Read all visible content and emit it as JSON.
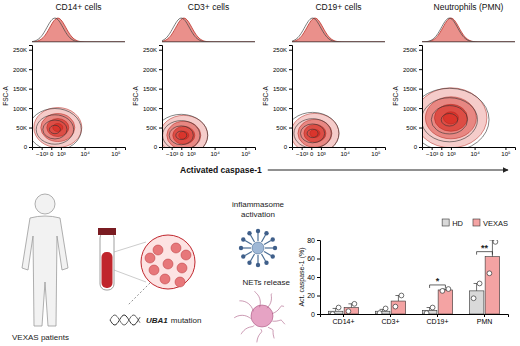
{
  "flow": {
    "x_label": "Activated caspase-1",
    "y_label": "FSC-A",
    "xlim": [
      -3000,
      200000
    ],
    "xticks": [
      {
        "value": -1000,
        "label": "−10³"
      },
      0,
      {
        "value": 1000,
        "label": "10³"
      },
      {
        "value": 10000,
        "label": "10⁴"
      },
      {
        "value": 100000,
        "label": "10⁵"
      }
    ],
    "ylim": [
      0,
      262144
    ],
    "yticks": [
      0,
      {
        "value": 50000,
        "label": "50K"
      },
      {
        "value": 100000,
        "label": "100K"
      },
      {
        "value": 150000,
        "label": "150K"
      },
      {
        "value": 200000,
        "label": "200K"
      },
      {
        "value": 250000,
        "label": "250K"
      }
    ],
    "panels": [
      {
        "title": "CD14+ cells",
        "hd_center": {
          "x": 300,
          "y": 45000
        },
        "vexas_center": {
          "x": 600,
          "y": 50000
        }
      },
      {
        "title": "CD3+ cells",
        "hd_center": {
          "x": 0,
          "y": 30000
        },
        "vexas_center": {
          "x": 200,
          "y": 30000
        }
      },
      {
        "title": "CD19+ cells",
        "hd_center": {
          "x": 100,
          "y": 35000
        },
        "vexas_center": {
          "x": 300,
          "y": 35000
        }
      },
      {
        "title": "Neutrophils (PMN)",
        "hd_center": {
          "x": 800,
          "y": 70000
        },
        "vexas_center": {
          "x": 1000,
          "y": 75000
        }
      }
    ]
  },
  "illustration": {
    "patients": "VEXAS patients",
    "inflammasome": [
      "inflammasome",
      "activation"
    ],
    "nets": "NETs release",
    "mutation": {
      "gene": "UBA1",
      "text": "mutation"
    }
  },
  "chart_data": {
    "type": "bar",
    "categories": [
      "CD14+",
      "CD3+",
      "CD19+",
      "PMN"
    ],
    "y_label": "Act. caspase-1 (%)",
    "ylim": [
      0,
      80
    ],
    "yticks": [
      0,
      20,
      40,
      60,
      80
    ],
    "legend": "top-right",
    "series": [
      {
        "name": "HD",
        "color": "#d9d9d9",
        "values": [
          3,
          3,
          4,
          25
        ],
        "errors": [
          3,
          2,
          3,
          8
        ],
        "points": [
          [
            0,
            7
          ],
          [
            1,
            6
          ],
          [
            1,
            7
          ],
          [
            17,
            33
          ]
        ]
      },
      {
        "name": "VEXAS",
        "color": "#f4a3a3",
        "values": [
          7,
          14,
          26,
          62
        ],
        "errors": [
          4,
          6,
          1,
          18
        ],
        "points": [
          [
            3,
            11
          ],
          [
            8,
            20
          ],
          [
            25,
            27
          ],
          [
            44,
            78
          ]
        ]
      }
    ],
    "annotations": [
      {
        "index": 2,
        "text": "*"
      },
      {
        "index": 3,
        "text": "**"
      }
    ]
  }
}
